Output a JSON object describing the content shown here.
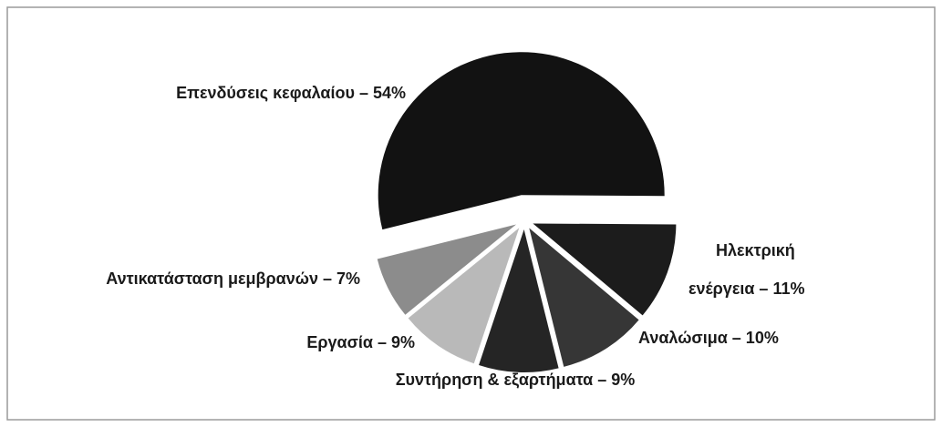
{
  "chart_data": {
    "type": "pie",
    "categories": [
      "Επενδύσεις κεφαλαίου – 54%",
      "Ηλεκτρική ενέργεια – 11%",
      "Αναλώσιμα – 10%",
      "Συντήρηση & εξαρτήματα – 9%",
      "Εργασία – 9%",
      "Αντικατάσταση μεμβρανών – 7%"
    ],
    "values": [
      54,
      11,
      10,
      9,
      9,
      7
    ],
    "colors": [
      "#121212",
      "#1c1c1c",
      "#363636",
      "#252525",
      "#b9b9b9",
      "#8c8c8c"
    ]
  }
}
